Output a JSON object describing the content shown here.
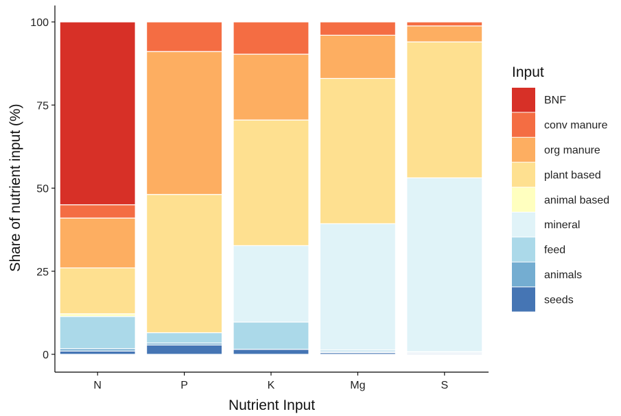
{
  "chart_data": {
    "type": "bar",
    "stacked": true,
    "categories": [
      "N",
      "P",
      "K",
      "Mg",
      "S"
    ],
    "series": [
      {
        "name": "seeds",
        "color": "#4575b4",
        "values": [
          1.0,
          2.8,
          1.5,
          0.5,
          0.3
        ]
      },
      {
        "name": "animals",
        "color": "#74add1",
        "values": [
          0.7,
          0.6,
          0.0,
          0.3,
          0.3
        ]
      },
      {
        "name": "feed",
        "color": "#abd9e9",
        "values": [
          9.7,
          3.1,
          8.2,
          0.5,
          0.2
        ]
      },
      {
        "name": "mineral",
        "color": "#e0f3f8",
        "values": [
          0.0,
          0.0,
          23.0,
          38.0,
          52.3
        ]
      },
      {
        "name": "animal based",
        "color": "#ffffbf",
        "values": [
          0.8,
          0.0,
          0.0,
          0.0,
          0.0
        ]
      },
      {
        "name": "plant based",
        "color": "#fee090",
        "values": [
          13.8,
          41.6,
          37.8,
          43.7,
          40.9
        ]
      },
      {
        "name": "org manure",
        "color": "#fdae61",
        "values": [
          15.0,
          43.0,
          19.8,
          13.0,
          4.8
        ]
      },
      {
        "name": "conv manure",
        "color": "#f46d43",
        "values": [
          4.0,
          8.9,
          9.7,
          4.0,
          1.2
        ]
      },
      {
        "name": "BNF",
        "color": "#d73027",
        "values": [
          55.0,
          0.0,
          0.0,
          0.0,
          0.0
        ]
      }
    ],
    "legend_order": [
      "BNF",
      "conv manure",
      "org manure",
      "plant based",
      "animal based",
      "mineral",
      "feed",
      "animals",
      "seeds"
    ],
    "legend_title": "Input",
    "legend_position": "right",
    "xlabel": "Nutrient Input",
    "ylabel": "Share of nutrient input (%)",
    "ylim": [
      0,
      100
    ],
    "yticks": [
      0,
      25,
      50,
      75,
      100
    ],
    "grid": false
  }
}
